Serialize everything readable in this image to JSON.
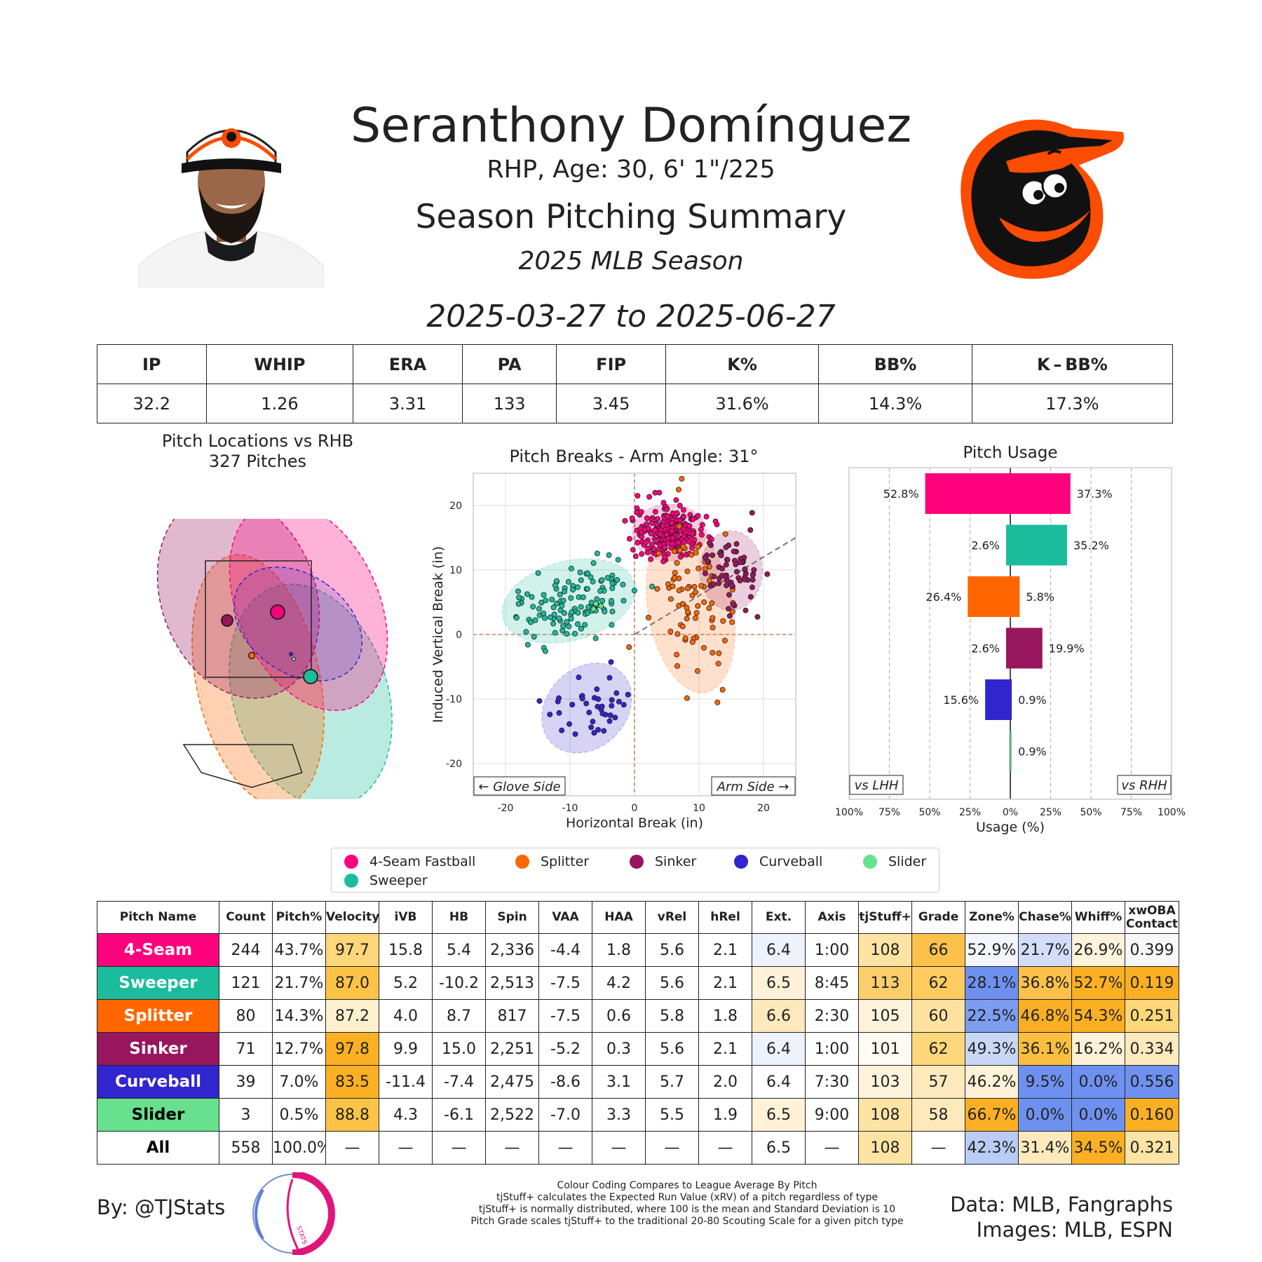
{
  "header": {
    "player_name": "Seranthony Domínguez",
    "player_info": "RHP, Age: 30, 6' 1\"/225",
    "summary_title": "Season Pitching Summary",
    "season": "2025 MLB Season",
    "date_range": "2025-03-27 to 2025-06-27"
  },
  "colors": {
    "four_seam": "#FF007D",
    "sweeper": "#1ABC9C",
    "splitter": "#FF6600",
    "sinker": "#98165D",
    "curveball": "#3025CE",
    "slider": "#67E18D",
    "orioles_orange": "#FC4C02"
  },
  "season_stats": {
    "headers": [
      "IP",
      "WHIP",
      "ERA",
      "PA",
      "FIP",
      "K%",
      "BB%",
      "K – BB%"
    ],
    "values": [
      "32.2",
      "1.26",
      "3.31",
      "133",
      "3.45",
      "31.6%",
      "14.3%",
      "17.3%"
    ]
  },
  "legend": {
    "items": [
      "4-Seam Fastball",
      "Splitter",
      "Sinker",
      "Curveball",
      "Slider",
      "Sweeper"
    ]
  },
  "pitch_table": {
    "headers": [
      "Pitch Name",
      "Count",
      "Pitch%",
      "Velocity",
      "iVB",
      "HB",
      "Spin",
      "VAA",
      "HAA",
      "vRel",
      "hRel",
      "Ext.",
      "Axis",
      "tjStuff+",
      "Grade",
      "Zone%",
      "Chase%",
      "Whiff%",
      "xwOBA Contact"
    ],
    "rows": [
      [
        "4-Seam",
        "244",
        "43.7%",
        "97.7",
        "15.8",
        "5.4",
        "2,336",
        "-4.4",
        "1.8",
        "5.6",
        "2.1",
        "6.4",
        "1:00",
        "108",
        "66",
        "52.9%",
        "21.7%",
        "26.9%",
        "0.399"
      ],
      [
        "Sweeper",
        "121",
        "21.7%",
        "87.0",
        "5.2",
        "-10.2",
        "2,513",
        "-7.5",
        "4.2",
        "5.6",
        "2.1",
        "6.5",
        "8:45",
        "113",
        "62",
        "28.1%",
        "36.8%",
        "52.7%",
        "0.119"
      ],
      [
        "Splitter",
        "80",
        "14.3%",
        "87.2",
        "4.0",
        "8.7",
        "817",
        "-7.5",
        "0.6",
        "5.8",
        "1.8",
        "6.6",
        "2:30",
        "105",
        "60",
        "22.5%",
        "46.8%",
        "54.3%",
        "0.251"
      ],
      [
        "Sinker",
        "71",
        "12.7%",
        "97.8",
        "9.9",
        "15.0",
        "2,251",
        "-5.2",
        "0.3",
        "5.6",
        "2.1",
        "6.4",
        "1:00",
        "101",
        "62",
        "49.3%",
        "36.1%",
        "16.2%",
        "0.334"
      ],
      [
        "Curveball",
        "39",
        "7.0%",
        "83.5",
        "-11.4",
        "-7.4",
        "2,475",
        "-8.6",
        "3.1",
        "5.7",
        "2.0",
        "6.4",
        "7:30",
        "103",
        "57",
        "46.2%",
        "9.5%",
        "0.0%",
        "0.556"
      ],
      [
        "Slider",
        "3",
        "0.5%",
        "88.8",
        "4.3",
        "-6.1",
        "2,522",
        "-7.0",
        "3.3",
        "5.5",
        "1.9",
        "6.5",
        "9:00",
        "108",
        "58",
        "66.7%",
        "0.0%",
        "0.0%",
        "0.160"
      ],
      [
        "All",
        "558",
        "100.0%",
        "—",
        "—",
        "—",
        "—",
        "—",
        "—",
        "—",
        "—",
        "6.5",
        "—",
        "108",
        "—",
        "42.3%",
        "31.4%",
        "34.5%",
        "0.321"
      ]
    ],
    "row_colors": [
      "#FF007D",
      "#1ABC9C",
      "#FF6600",
      "#98165D",
      "#3025CE",
      "#67E18D",
      "#FFFFFF"
    ],
    "row_text_colors": [
      "#FFFFFF",
      "#FFFFFF",
      "#FFFFFF",
      "#FFFFFF",
      "#FFFFFF",
      "#000000",
      "#000000"
    ],
    "cell_colors": [
      {
        "3": "#FDD77A",
        "11": "#EEF2FC",
        "13": "#FDE3A4",
        "14": "#FBC14A",
        "15": "#F4F6FD",
        "16": "#D2DDF9",
        "17": "#FFF3DC",
        "18": "#F7F7FA"
      },
      {
        "3": "#FDC347",
        "11": "#FFF2D9",
        "13": "#FCCF6A",
        "14": "#FDCB5E",
        "15": "#6E91F0",
        "16": "#FBC14A",
        "17": "#FBB024",
        "18": "#FBB024"
      },
      {
        "3": "#FEF0CF",
        "11": "#FEE9BC",
        "13": "#FFF3DC",
        "14": "#FDE1A0",
        "15": "#7D9DF1",
        "16": "#FBB024",
        "17": "#FBB024",
        "18": "#FDD778"
      },
      {
        "3": "#FBB024",
        "11": "#EEF2FC",
        "13": "#FFFBF2",
        "14": "#FDD77A",
        "15": "#CAD8F8",
        "16": "#FBBE3F",
        "17": "#FFF2D6",
        "18": "#FEE9BC"
      },
      {
        "3": "#FBB024",
        "11": "#FFFFFF",
        "13": "#FFF3DC",
        "14": "#FEE9BC",
        "15": "#FFF2D9",
        "16": "#6E91F0",
        "17": "#6E91F0",
        "18": "#6E91F0"
      },
      {
        "3": "#FDC347",
        "11": "#FFF2D9",
        "13": "#FDE3A4",
        "14": "#FEE9BC",
        "15": "#FBB024",
        "16": "#6E91F0",
        "17": "#6E91F0",
        "18": "#FBB024"
      },
      {
        "13": "#FDE3A4",
        "15": "#B9CCF6",
        "16": "#FEE9BC",
        "17": "#FBB024",
        "18": "#FDE3A4"
      }
    ]
  },
  "location_chart": {
    "title": "Pitch Locations vs RHB",
    "subtitle": "327 Pitches"
  },
  "chart_data": [
    {
      "type": "scatter",
      "title": "Pitch Breaks - Arm Angle: 31°",
      "xlabel": "Horizontal Break (in)",
      "ylabel": "Induced Vertical Break (in)",
      "xlim": [
        -25,
        25
      ],
      "ylim": [
        -25,
        25
      ],
      "xticks": [
        -20,
        -10,
        0,
        10,
        20
      ],
      "yticks": [
        -20,
        -10,
        0,
        10,
        20
      ],
      "glove_side_label": "← Glove Side",
      "arm_side_label": "Arm Side →",
      "arm_angle_deg": 31,
      "series": [
        {
          "name": "4-Seam Fastball",
          "color": "#FF007D",
          "count": 244,
          "center": [
            5.4,
            15.8
          ],
          "spread": [
            2.6,
            2.0
          ],
          "rotation": 0
        },
        {
          "name": "Sweeper",
          "color": "#1ABC9C",
          "count": 121,
          "center": [
            -10.2,
            5.2
          ],
          "spread": [
            4.8,
            2.8
          ],
          "rotation": 15
        },
        {
          "name": "Splitter",
          "color": "#FF6600",
          "count": 80,
          "center": [
            8.7,
            4.0
          ],
          "spread": [
            3.0,
            6.0
          ],
          "rotation": 10
        },
        {
          "name": "Sinker",
          "color": "#98165D",
          "count": 71,
          "center": [
            15.0,
            9.9
          ],
          "spread": [
            2.2,
            2.8
          ],
          "rotation": 0
        },
        {
          "name": "Curveball",
          "color": "#3025CE",
          "count": 39,
          "center": [
            -7.4,
            -11.4
          ],
          "spread": [
            2.8,
            3.5
          ],
          "rotation": -45
        },
        {
          "name": "Slider",
          "color": "#67E18D",
          "count": 3,
          "center": [
            -6.1,
            4.3
          ],
          "spread": [
            0.5,
            0.5
          ],
          "rotation": 0
        }
      ]
    },
    {
      "type": "bar",
      "orientation": "horizontal-diverging",
      "title": "Pitch Usage",
      "xlabel": "Usage (%)",
      "xlim": [
        -100,
        100
      ],
      "xtick_labels": [
        "100%",
        "75%",
        "50%",
        "25%",
        "0%",
        "25%",
        "50%",
        "75%",
        "100%"
      ],
      "left_label": "vs LHH",
      "right_label": "vs RHH",
      "categories": [
        "4-Seam Fastball",
        "Sweeper",
        "Splitter",
        "Sinker",
        "Curveball",
        "Slider"
      ],
      "series": [
        {
          "name": "vs LHH",
          "values": [
            52.8,
            2.6,
            26.4,
            2.6,
            15.6,
            0.0
          ],
          "labels": [
            "52.8%",
            "2.6%",
            "26.4%",
            "2.6%",
            "15.6%",
            ""
          ]
        },
        {
          "name": "vs RHH",
          "values": [
            37.3,
            35.2,
            5.8,
            19.9,
            0.9,
            0.9
          ],
          "labels": [
            "37.3%",
            "35.2%",
            "5.8%",
            "19.9%",
            "0.9%",
            "0.9%"
          ]
        }
      ],
      "colors": [
        "#FF007D",
        "#1ABC9C",
        "#FF6600",
        "#98165D",
        "#3025CE",
        "#67E18D"
      ]
    },
    {
      "type": "scatter",
      "title": "Pitch Locations vs RHB",
      "subtitle": "327 Pitches",
      "note": "pitch location density ellipses with mean location markers",
      "series": [
        {
          "name": "4-Seam Fastball",
          "color": "#FF007D",
          "mean": [
            0.1,
            2.9
          ],
          "marker": "large"
        },
        {
          "name": "Sinker",
          "color": "#98165D",
          "mean": [
            -0.5,
            2.8
          ],
          "marker": "medium"
        },
        {
          "name": "Sweeper",
          "color": "#1ABC9C",
          "mean": [
            0.6,
            1.9
          ],
          "marker": "large"
        },
        {
          "name": "Splitter",
          "color": "#FF6600",
          "mean": [
            -0.1,
            2.2
          ],
          "marker": "small"
        },
        {
          "name": "Curveball",
          "color": "#3025CE",
          "mean": [
            0.2,
            2.2
          ],
          "marker": "tiny"
        },
        {
          "name": "Slider",
          "color": "#67E18D",
          "mean": [
            0.25,
            2.1
          ],
          "marker": "tiny"
        }
      ]
    }
  ],
  "footer": {
    "by": "By: @TJStats",
    "logo_text": "STATS",
    "notes": [
      "Colour Coding Compares to League Average By Pitch",
      "tjStuff+ calculates the Expected Run Value (xRV) of a pitch regardless of type",
      "tjStuff+ is normally distributed, where 100 is the mean and Standard Deviation is 10",
      "Pitch Grade scales tjStuff+ to the traditional 20-80 Scouting Scale for a given pitch type"
    ],
    "data_source": "Data: MLB, Fangraphs",
    "images_source": "Images: MLB, ESPN"
  }
}
